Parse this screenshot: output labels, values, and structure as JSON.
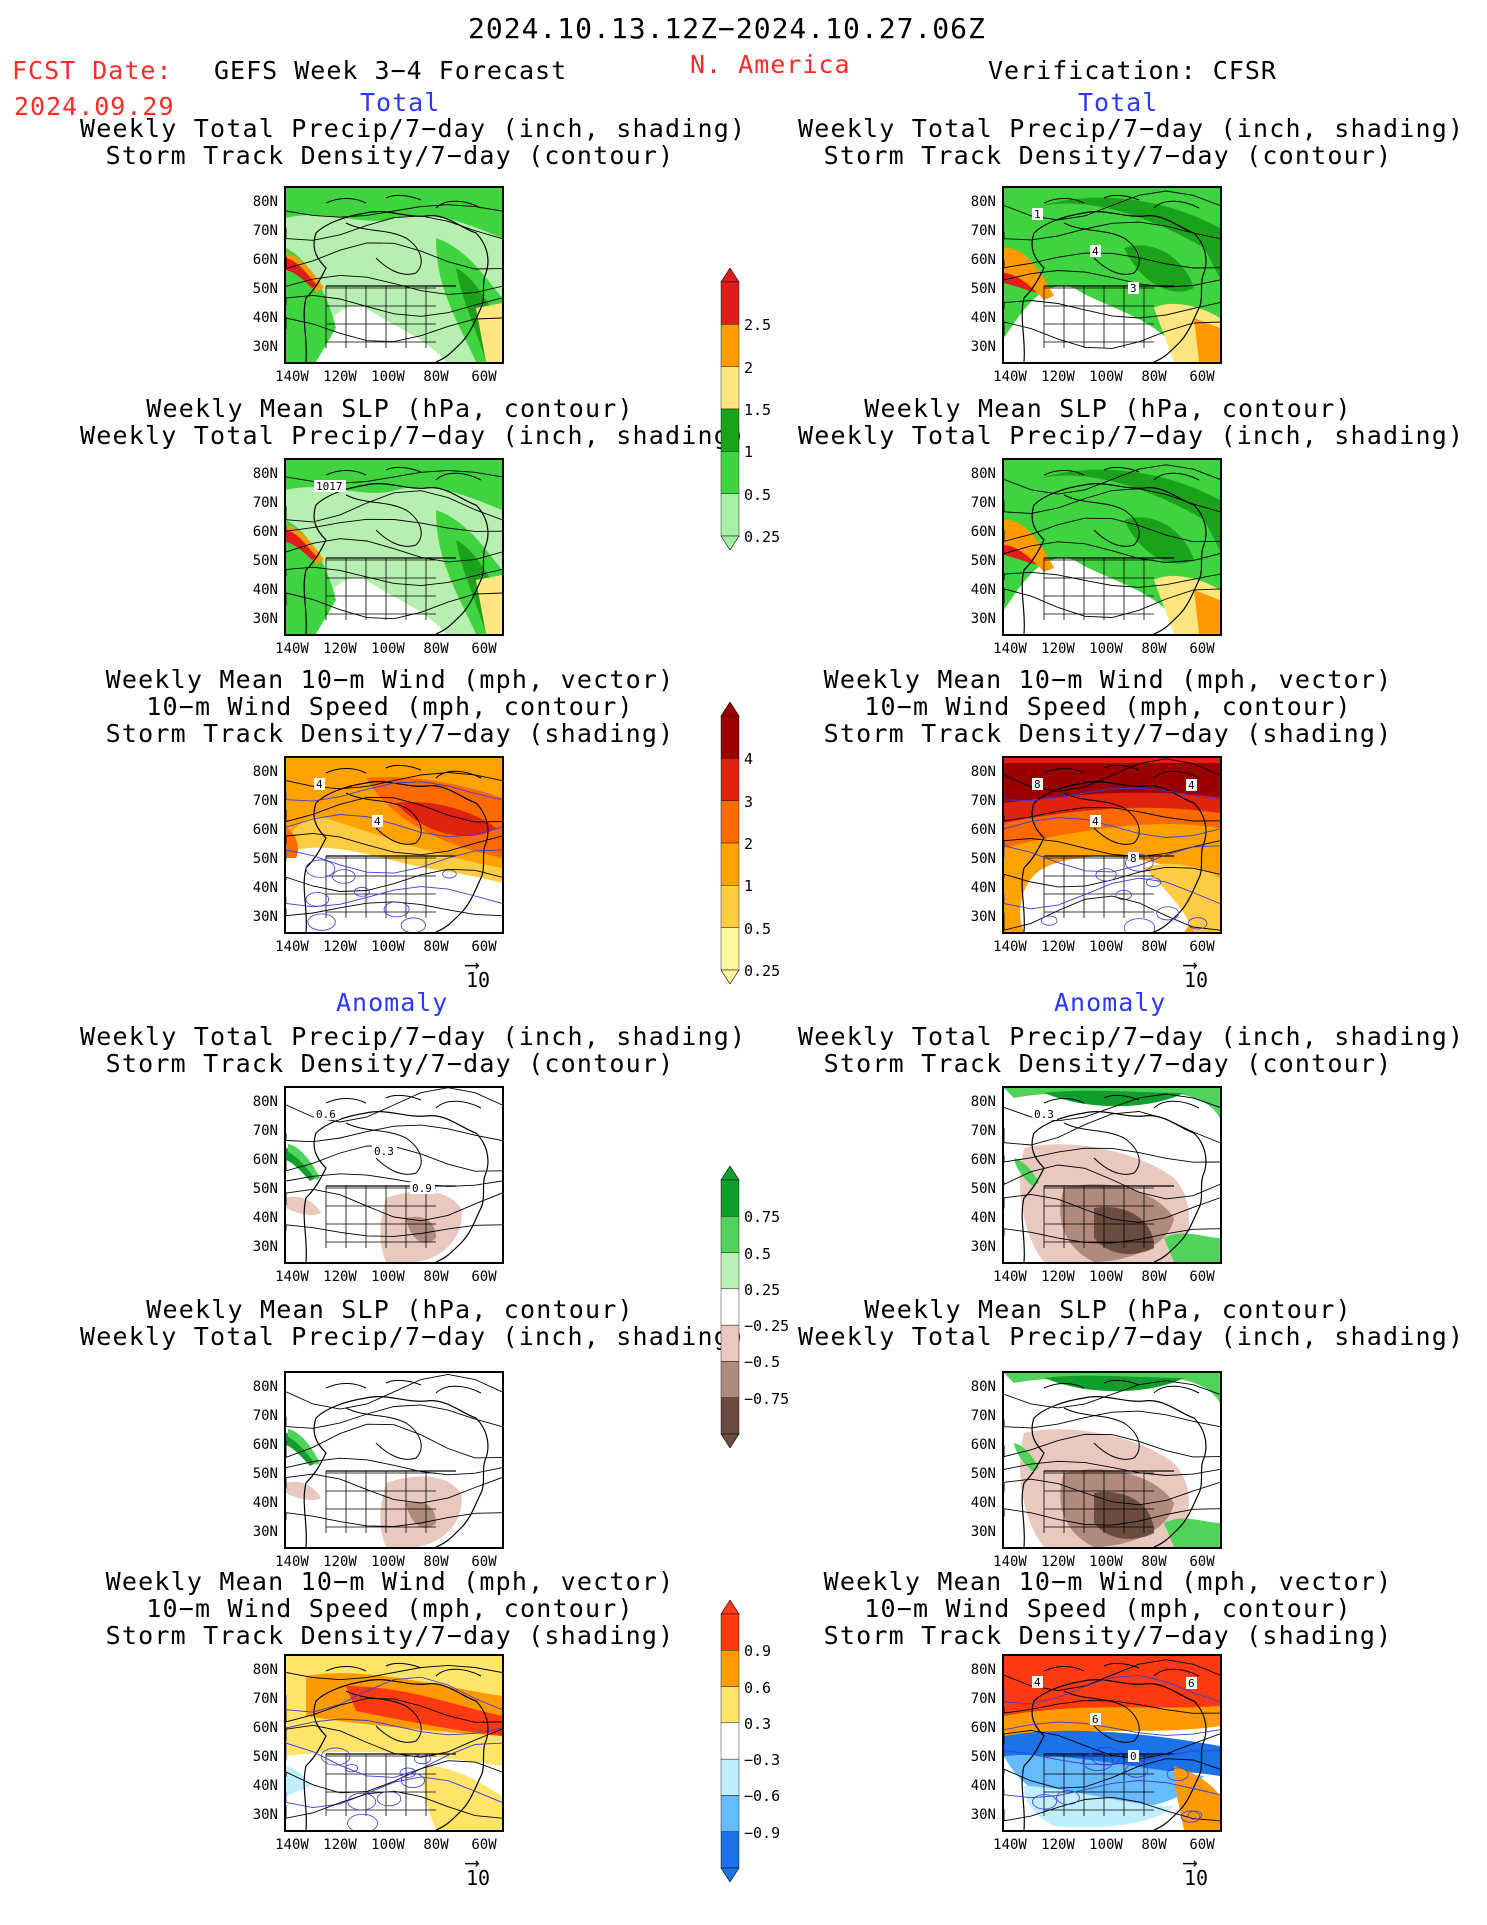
{
  "header": {
    "date_range": "2024.10.13.12Z−2024.10.27.06Z",
    "fcst_date_label": "FCST Date:",
    "fcst_date_value": "2024.09.29",
    "forecast_label": "GEFS Week 3−4 Forecast",
    "region": "N. America",
    "verification_label": "Verification: CFSR"
  },
  "sections": {
    "total": "Total",
    "anomaly": "Anomaly"
  },
  "panel_titles": {
    "precip_storm": [
      "Weekly Total Precip/7−day (inch, shading)",
      "Storm Track Density/7−day (contour)"
    ],
    "slp_precip": [
      "Weekly Mean SLP (hPa, contour)",
      "Weekly Total Precip/7−day (inch, shading)"
    ],
    "wind_storm": [
      "Weekly Mean 10−m Wind (mph, vector)",
      "10−m Wind Speed (mph, contour)",
      "Storm Track Density/7−day (shading)"
    ]
  },
  "axes": {
    "lat_labels": [
      "80N",
      "70N",
      "60N",
      "50N",
      "40N",
      "30N"
    ],
    "lon_labels": [
      "140W",
      "120W",
      "100W",
      "80W",
      "60W"
    ]
  },
  "vector_ref": "10",
  "map_labels": {
    "fcst_precip_storm": [],
    "obs_precip_storm": [
      "1",
      "4",
      "3"
    ],
    "fcst_slp": [
      "1017"
    ],
    "obs_slp": [],
    "fcst_wind": [
      "4",
      "4"
    ],
    "obs_wind": [
      "8",
      "4",
      "8",
      "4"
    ],
    "fcst_anom_precip": [
      "0.6",
      "0.3",
      "0.9"
    ],
    "obs_anom_precip": [
      "0.3"
    ],
    "fcst_anom_slp": [],
    "obs_anom_slp": [],
    "fcst_anom_wind": [],
    "obs_anom_wind": [
      "4",
      "6",
      "0",
      "6"
    ]
  },
  "colorbars": {
    "precip_total": {
      "labels": [
        "2.5",
        "2",
        "1.5",
        "1",
        "0.5",
        "0.25"
      ],
      "colors": [
        "#e01c1c",
        "#ff9a00",
        "#ffe680",
        "#1aa31a",
        "#3fd43f",
        "#a6f0a6"
      ]
    },
    "storm_total": {
      "labels": [
        "4",
        "3",
        "2",
        "1",
        "0.5",
        "0.25"
      ],
      "colors": [
        "#9b0000",
        "#e0230f",
        "#ff6a00",
        "#ffa200",
        "#ffcc44",
        "#fff6a0"
      ]
    },
    "precip_anom": {
      "labels": [
        "0.75",
        "0.5",
        "0.25",
        "−0.25",
        "−0.5",
        "−0.75"
      ],
      "colors": [
        "#109e2d",
        "#4fd35a",
        "#b8f0b8",
        "#ffffff",
        "#e8c8bf",
        "#b08a7c",
        "#6b4c40"
      ]
    },
    "storm_anom": {
      "labels": [
        "0.9",
        "0.6",
        "0.3",
        "−0.3",
        "−0.6",
        "−0.9"
      ],
      "colors": [
        "#ff3a10",
        "#ff9a00",
        "#ffe46a",
        "#ffffff",
        "#bfefff",
        "#66bbff",
        "#1a73e8"
      ]
    }
  }
}
